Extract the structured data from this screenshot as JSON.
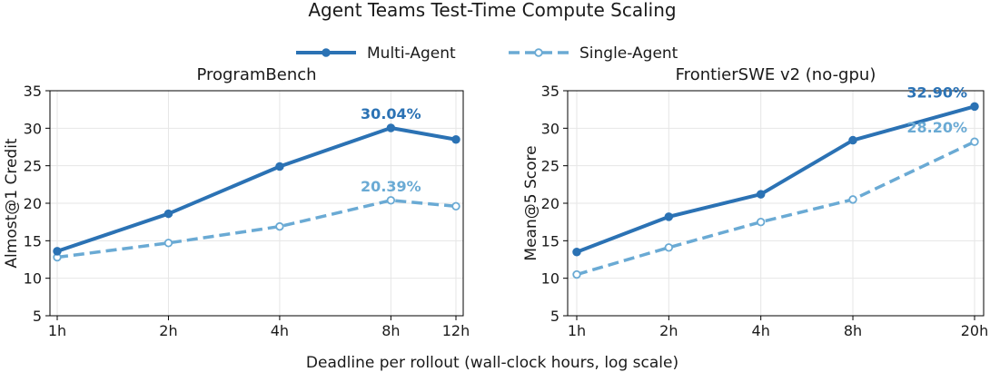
{
  "title": "Agent Teams Test-Time Compute Scaling",
  "xlabel": "Deadline per rollout (wall-clock hours, log scale)",
  "legend": {
    "placement": "top-center",
    "entries": [
      "Multi-Agent",
      "Single-Agent"
    ]
  },
  "colors": {
    "multi": "#2b72b4",
    "single": "#6aaad4"
  },
  "chart_data": [
    {
      "type": "line",
      "title": "ProgramBench",
      "xscale": "log",
      "x": [
        1,
        2,
        4,
        8,
        12
      ],
      "xticklabels": [
        "1h",
        "2h",
        "4h",
        "8h",
        "12h"
      ],
      "ylabel": "Almost@1 Credit",
      "ylim": [
        5,
        35
      ],
      "yticks": [
        5,
        10,
        15,
        20,
        25,
        30,
        35
      ],
      "grid": true,
      "series": [
        {
          "name": "Multi-Agent",
          "style": "solid",
          "values": [
            13.6,
            18.6,
            24.9,
            30.04,
            28.5
          ]
        },
        {
          "name": "Single-Agent",
          "style": "dashed",
          "values": [
            12.8,
            14.7,
            16.9,
            20.39,
            19.6
          ]
        }
      ],
      "annotations": [
        {
          "series": 0,
          "index": 3,
          "text": "30.04%"
        },
        {
          "series": 1,
          "index": 3,
          "text": "20.39%"
        }
      ]
    },
    {
      "type": "line",
      "title": "FrontierSWE v2 (no-gpu)",
      "xscale": "log",
      "x": [
        1,
        2,
        4,
        8,
        20
      ],
      "xticklabels": [
        "1h",
        "2h",
        "4h",
        "8h",
        "20h"
      ],
      "ylabel": "Mean@5 Score",
      "ylim": [
        5,
        35
      ],
      "yticks": [
        5,
        10,
        15,
        20,
        25,
        30,
        35
      ],
      "grid": true,
      "series": [
        {
          "name": "Multi-Agent",
          "style": "solid",
          "values": [
            13.5,
            18.2,
            21.2,
            28.4,
            32.9
          ]
        },
        {
          "name": "Single-Agent",
          "style": "dashed",
          "values": [
            10.5,
            14.1,
            17.5,
            20.5,
            28.2
          ]
        }
      ],
      "annotations": [
        {
          "series": 0,
          "index": 4,
          "text": "32.90%"
        },
        {
          "series": 1,
          "index": 4,
          "text": "28.20%"
        }
      ]
    }
  ]
}
